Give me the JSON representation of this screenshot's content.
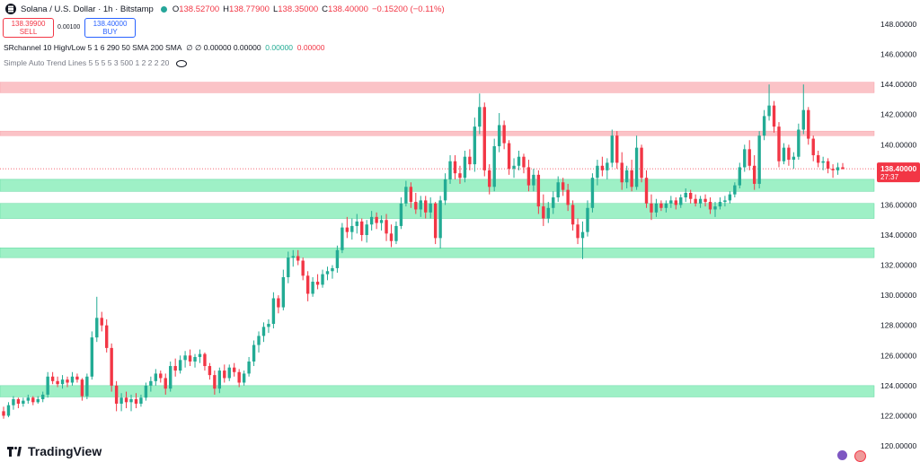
{
  "header": {
    "title": "Solana / U.S. Dollar · 1h · Bitstamp",
    "ohlc": [
      {
        "k": "O",
        "v": "138.52700"
      },
      {
        "k": "H",
        "v": "138.77900"
      },
      {
        "k": "L",
        "v": "138.35000"
      },
      {
        "k": "C",
        "v": "138.40000"
      }
    ],
    "change": "−0.15200 (−0.11%)"
  },
  "trade": {
    "sell_price": "138.39900",
    "sell_label": "SELL",
    "spread": "0.00100",
    "buy_price": "138.40000",
    "buy_label": "BUY"
  },
  "indicators": {
    "sr_label": "SRchannel 10 High/Low 5 1 6 290 50 SMA 200 SMA",
    "sr_values": "∅ ∅ 0.00000 0.00000",
    "sr_green": "0.00000",
    "sr_red": "0.00000",
    "trend_label": "Simple Auto Trend Lines 5 5 5 5 3 500 1 2 2 2 20"
  },
  "brand": "TradingView",
  "colors": {
    "up": "#22ab94",
    "down": "#f23645",
    "support_zone": "#9ef0c6",
    "resistance_zone": "#fbc3c7",
    "price_tag": "#f23645"
  },
  "chart_data": {
    "type": "candlestick",
    "ylim": [
      120,
      149.5
    ],
    "y_ticks": [
      "148.00000",
      "146.00000",
      "144.00000",
      "142.00000",
      "140.00000",
      "138.00000",
      "136.00000",
      "134.00000",
      "132.00000",
      "130.00000",
      "128.00000",
      "126.00000",
      "124.00000",
      "122.00000",
      "120.00000"
    ],
    "last_price": "138.40000",
    "countdown": "27:37",
    "resistance_zones": [
      [
        143.45,
        144.15
      ],
      [
        140.6,
        140.9
      ]
    ],
    "support_zones": [
      [
        136.9,
        137.7
      ],
      [
        135.1,
        136.1
      ],
      [
        132.5,
        133.15
      ],
      [
        123.25,
        124.0
      ]
    ],
    "candles": [
      [
        122.3,
        122.6,
        121.8,
        122.0
      ],
      [
        122.0,
        122.9,
        121.9,
        122.7
      ],
      [
        122.7,
        123.3,
        122.4,
        123.1
      ],
      [
        123.1,
        123.2,
        122.5,
        122.8
      ],
      [
        122.8,
        123.2,
        122.6,
        123.0
      ],
      [
        123.0,
        123.4,
        122.8,
        123.2
      ],
      [
        123.2,
        123.3,
        122.7,
        122.9
      ],
      [
        122.9,
        123.3,
        122.8,
        123.1
      ],
      [
        123.1,
        123.6,
        122.9,
        123.4
      ],
      [
        123.4,
        124.9,
        123.2,
        124.6
      ],
      [
        124.6,
        124.9,
        124.1,
        124.3
      ],
      [
        124.3,
        124.6,
        123.9,
        124.1
      ],
      [
        124.1,
        124.7,
        123.8,
        124.4
      ],
      [
        124.4,
        124.6,
        123.9,
        124.2
      ],
      [
        124.2,
        124.9,
        124.0,
        124.6
      ],
      [
        124.6,
        124.8,
        124.2,
        124.4
      ],
      [
        124.4,
        124.5,
        123.0,
        123.3
      ],
      [
        123.3,
        124.8,
        123.1,
        124.6
      ],
      [
        124.6,
        127.6,
        124.4,
        127.2
      ],
      [
        127.2,
        129.9,
        126.9,
        128.5
      ],
      [
        128.5,
        128.9,
        127.6,
        128.0
      ],
      [
        128.0,
        128.4,
        126.2,
        126.5
      ],
      [
        126.5,
        126.8,
        123.6,
        124.0
      ],
      [
        124.0,
        124.3,
        122.3,
        122.8
      ],
      [
        122.8,
        123.5,
        122.3,
        123.2
      ],
      [
        123.2,
        123.6,
        122.5,
        122.9
      ],
      [
        122.9,
        123.4,
        122.3,
        123.1
      ],
      [
        123.1,
        123.5,
        122.5,
        122.8
      ],
      [
        122.8,
        123.4,
        122.6,
        123.2
      ],
      [
        123.2,
        124.2,
        123.0,
        124.0
      ],
      [
        124.0,
        124.6,
        123.6,
        124.3
      ],
      [
        124.3,
        125.1,
        124.0,
        124.8
      ],
      [
        124.8,
        125.0,
        124.2,
        124.5
      ],
      [
        124.5,
        124.8,
        123.4,
        123.8
      ],
      [
        123.8,
        125.6,
        123.6,
        125.3
      ],
      [
        125.3,
        125.8,
        124.6,
        125.0
      ],
      [
        125.0,
        126.0,
        124.8,
        125.7
      ],
      [
        125.7,
        126.3,
        125.2,
        126.0
      ],
      [
        126.0,
        126.4,
        125.3,
        125.6
      ],
      [
        125.6,
        126.1,
        125.2,
        125.9
      ],
      [
        125.9,
        126.4,
        125.5,
        126.1
      ],
      [
        126.1,
        126.2,
        125.0,
        125.3
      ],
      [
        125.3,
        125.5,
        124.4,
        124.7
      ],
      [
        124.7,
        125.0,
        123.4,
        123.8
      ],
      [
        123.8,
        125.2,
        123.5,
        125.0
      ],
      [
        125.0,
        125.4,
        124.2,
        124.5
      ],
      [
        124.5,
        125.4,
        124.3,
        125.2
      ],
      [
        125.2,
        125.5,
        124.6,
        124.9
      ],
      [
        124.9,
        125.1,
        123.9,
        124.2
      ],
      [
        124.2,
        125.0,
        124.0,
        124.8
      ],
      [
        124.8,
        125.9,
        124.6,
        125.6
      ],
      [
        125.6,
        127.0,
        125.3,
        126.7
      ],
      [
        126.7,
        127.6,
        126.2,
        127.3
      ],
      [
        127.3,
        128.2,
        126.9,
        127.9
      ],
      [
        127.9,
        128.4,
        127.5,
        128.1
      ],
      [
        128.1,
        130.2,
        127.8,
        129.8
      ],
      [
        129.8,
        130.0,
        128.8,
        129.2
      ],
      [
        129.2,
        131.7,
        129.0,
        131.2
      ],
      [
        131.2,
        132.9,
        130.8,
        132.5
      ],
      [
        132.5,
        133.0,
        131.9,
        132.6
      ],
      [
        132.6,
        133.0,
        132.0,
        132.3
      ],
      [
        132.3,
        132.5,
        131.0,
        131.3
      ],
      [
        131.3,
        131.6,
        129.6,
        130.1
      ],
      [
        130.1,
        131.2,
        129.9,
        130.9
      ],
      [
        130.9,
        131.4,
        130.4,
        130.7
      ],
      [
        130.7,
        131.7,
        130.5,
        131.4
      ],
      [
        131.4,
        131.9,
        131.0,
        131.6
      ],
      [
        131.6,
        132.0,
        131.1,
        131.8
      ],
      [
        131.8,
        133.3,
        131.5,
        133.0
      ],
      [
        133.0,
        134.8,
        132.8,
        134.5
      ],
      [
        134.5,
        135.2,
        133.8,
        134.2
      ],
      [
        134.2,
        135.1,
        133.7,
        134.6
      ],
      [
        134.6,
        135.4,
        134.1,
        134.9
      ],
      [
        134.9,
        135.1,
        133.6,
        134.0
      ],
      [
        134.0,
        135.0,
        133.5,
        134.7
      ],
      [
        134.7,
        135.6,
        134.3,
        135.2
      ],
      [
        135.2,
        135.5,
        134.4,
        134.8
      ],
      [
        134.8,
        135.3,
        134.3,
        135.0
      ],
      [
        135.0,
        135.4,
        133.6,
        134.1
      ],
      [
        134.1,
        134.7,
        133.2,
        133.6
      ],
      [
        133.6,
        134.9,
        133.4,
        134.6
      ],
      [
        134.6,
        136.5,
        134.4,
        136.1
      ],
      [
        136.1,
        137.6,
        135.9,
        137.2
      ],
      [
        137.2,
        137.5,
        135.8,
        136.2
      ],
      [
        136.2,
        136.8,
        135.4,
        135.7
      ],
      [
        135.7,
        136.6,
        135.2,
        136.3
      ],
      [
        136.3,
        136.6,
        135.1,
        135.5
      ],
      [
        135.5,
        136.5,
        135.1,
        136.1
      ],
      [
        136.1,
        136.2,
        133.4,
        133.8
      ],
      [
        133.8,
        136.6,
        133.1,
        136.3
      ],
      [
        136.3,
        138.1,
        136.0,
        137.7
      ],
      [
        137.7,
        139.3,
        137.4,
        138.9
      ],
      [
        138.9,
        139.3,
        137.7,
        138.1
      ],
      [
        138.1,
        138.6,
        137.4,
        137.8
      ],
      [
        137.8,
        139.6,
        137.5,
        139.2
      ],
      [
        139.2,
        139.7,
        138.3,
        138.7
      ],
      [
        138.7,
        141.8,
        138.2,
        141.2
      ],
      [
        141.2,
        143.4,
        140.7,
        142.5
      ],
      [
        142.5,
        142.8,
        137.9,
        138.3
      ],
      [
        138.3,
        138.7,
        136.7,
        137.2
      ],
      [
        137.2,
        140.4,
        136.9,
        139.9
      ],
      [
        139.9,
        142.1,
        139.5,
        141.3
      ],
      [
        141.3,
        141.6,
        139.7,
        140.1
      ],
      [
        140.1,
        140.3,
        138.0,
        138.4
      ],
      [
        138.4,
        139.1,
        137.8,
        138.6
      ],
      [
        138.6,
        139.6,
        138.3,
        139.2
      ],
      [
        139.2,
        139.4,
        138.1,
        138.5
      ],
      [
        138.5,
        139.0,
        136.9,
        137.3
      ],
      [
        137.3,
        138.4,
        136.9,
        138.0
      ],
      [
        138.0,
        138.3,
        135.4,
        135.9
      ],
      [
        135.9,
        136.7,
        134.6,
        135.1
      ],
      [
        135.1,
        136.2,
        134.8,
        135.8
      ],
      [
        135.8,
        136.9,
        135.4,
        136.5
      ],
      [
        136.5,
        137.9,
        136.2,
        137.5
      ],
      [
        137.5,
        137.8,
        136.6,
        137.0
      ],
      [
        137.0,
        137.4,
        135.6,
        136.0
      ],
      [
        136.0,
        136.3,
        134.3,
        134.7
      ],
      [
        134.7,
        135.1,
        133.4,
        133.8
      ],
      [
        133.8,
        134.9,
        132.4,
        134.2
      ],
      [
        134.2,
        136.3,
        133.9,
        135.8
      ],
      [
        135.8,
        138.1,
        135.5,
        137.8
      ],
      [
        137.8,
        139.0,
        137.3,
        138.6
      ],
      [
        138.6,
        139.2,
        137.9,
        138.3
      ],
      [
        138.3,
        139.1,
        137.7,
        138.8
      ],
      [
        138.8,
        141.0,
        138.5,
        140.6
      ],
      [
        140.6,
        140.9,
        138.4,
        138.8
      ],
      [
        138.8,
        139.5,
        137.0,
        137.5
      ],
      [
        137.5,
        138.6,
        137.1,
        138.3
      ],
      [
        138.3,
        139.0,
        136.9,
        137.2
      ],
      [
        137.2,
        140.6,
        137.0,
        139.8
      ],
      [
        139.8,
        140.0,
        137.5,
        137.8
      ],
      [
        137.8,
        138.3,
        135.8,
        136.1
      ],
      [
        136.1,
        136.7,
        135.0,
        135.5
      ],
      [
        135.5,
        136.4,
        135.2,
        136.1
      ],
      [
        136.1,
        136.3,
        135.6,
        135.8
      ],
      [
        135.8,
        136.3,
        135.5,
        136.1
      ],
      [
        136.1,
        136.6,
        135.8,
        136.3
      ],
      [
        136.3,
        136.5,
        135.7,
        136.0
      ],
      [
        136.0,
        136.7,
        135.8,
        136.5
      ],
      [
        136.5,
        137.1,
        136.2,
        136.8
      ],
      [
        136.8,
        137.0,
        136.1,
        136.4
      ],
      [
        136.4,
        136.7,
        135.9,
        136.1
      ],
      [
        136.1,
        136.6,
        135.8,
        136.4
      ],
      [
        136.4,
        136.7,
        135.9,
        136.2
      ],
      [
        136.2,
        136.5,
        135.4,
        135.7
      ],
      [
        135.7,
        136.2,
        135.2,
        135.9
      ],
      [
        135.9,
        136.5,
        135.7,
        136.2
      ],
      [
        136.2,
        136.6,
        135.9,
        136.3
      ],
      [
        136.3,
        136.9,
        136.1,
        136.7
      ],
      [
        136.7,
        137.5,
        136.5,
        137.3
      ],
      [
        137.3,
        138.8,
        137.1,
        138.5
      ],
      [
        138.5,
        140.0,
        138.2,
        139.7
      ],
      [
        139.7,
        140.3,
        138.3,
        138.6
      ],
      [
        138.6,
        139.3,
        137.0,
        137.4
      ],
      [
        137.4,
        140.9,
        137.1,
        140.6
      ],
      [
        140.6,
        142.3,
        140.3,
        141.9
      ],
      [
        141.9,
        144.0,
        141.6,
        142.6
      ],
      [
        142.6,
        142.9,
        140.8,
        141.2
      ],
      [
        141.2,
        141.5,
        138.5,
        138.9
      ],
      [
        138.9,
        140.1,
        138.7,
        139.8
      ],
      [
        139.8,
        140.0,
        138.6,
        139.0
      ],
      [
        139.0,
        139.5,
        138.4,
        139.2
      ],
      [
        139.2,
        141.4,
        139.0,
        141.0
      ],
      [
        141.0,
        144.0,
        140.7,
        142.3
      ],
      [
        142.3,
        142.5,
        140.0,
        140.4
      ],
      [
        140.4,
        140.6,
        138.9,
        139.3
      ],
      [
        139.3,
        139.6,
        138.5,
        138.8
      ],
      [
        138.8,
        139.2,
        138.3,
        138.9
      ],
      [
        138.9,
        139.1,
        138.1,
        138.4
      ],
      [
        138.4,
        138.7,
        137.8,
        138.3
      ],
      [
        138.3,
        138.8,
        138.0,
        138.5
      ],
      [
        138.5,
        138.78,
        138.35,
        138.4
      ]
    ]
  }
}
